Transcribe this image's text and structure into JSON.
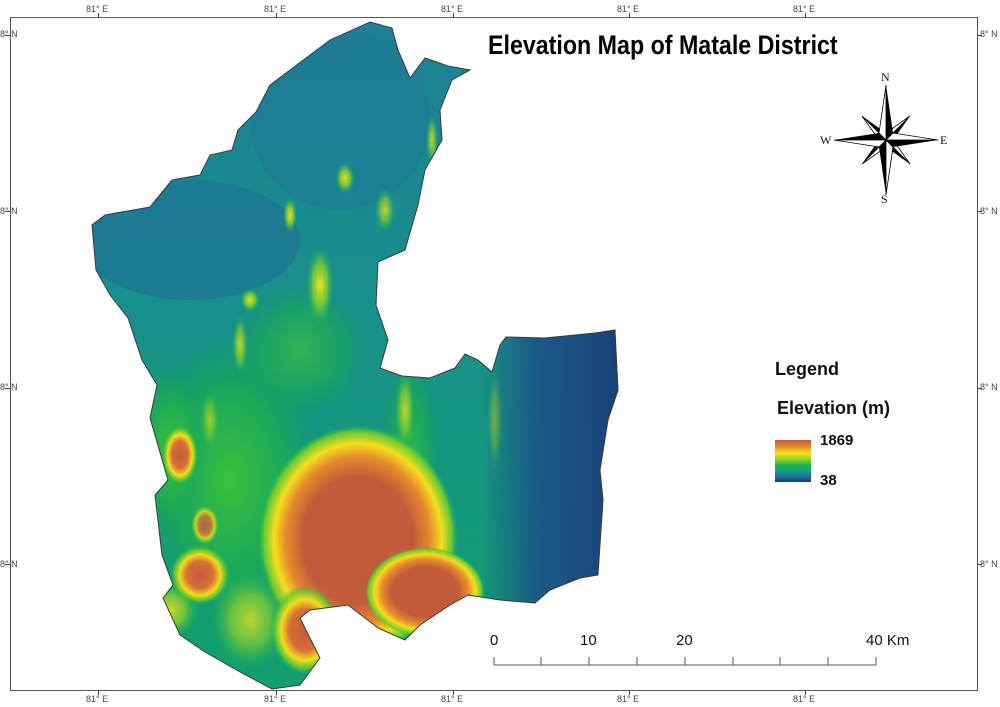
{
  "title": "Elevation Map of Matale District",
  "graticule": {
    "top_labels": [
      "81° E",
      "81° E",
      "81° E",
      "81° E",
      "81° E"
    ],
    "bottom_labels": [
      "81° E",
      "81° E",
      "81° E",
      "81° E",
      "81° E"
    ],
    "left_labels": [
      "8° N",
      "8° N",
      "8° N",
      "8° N"
    ],
    "right_labels": [
      "8° N",
      "8° N",
      "8° N",
      "8° N"
    ]
  },
  "compass": {
    "north": "N",
    "south": "S",
    "east": "E",
    "west": "W"
  },
  "legend": {
    "heading": "Legend",
    "subtitle": "Elevation (m)",
    "max_value": "1869",
    "min_value": "38",
    "colors": [
      "#c1593a",
      "#f6e11a",
      "#19b54b",
      "#1f6b98",
      "#1a3c78"
    ]
  },
  "scale_bar": {
    "labels": [
      "0",
      "10",
      "20",
      "40 Km"
    ],
    "values_km": [
      0,
      10,
      20,
      40
    ]
  }
}
